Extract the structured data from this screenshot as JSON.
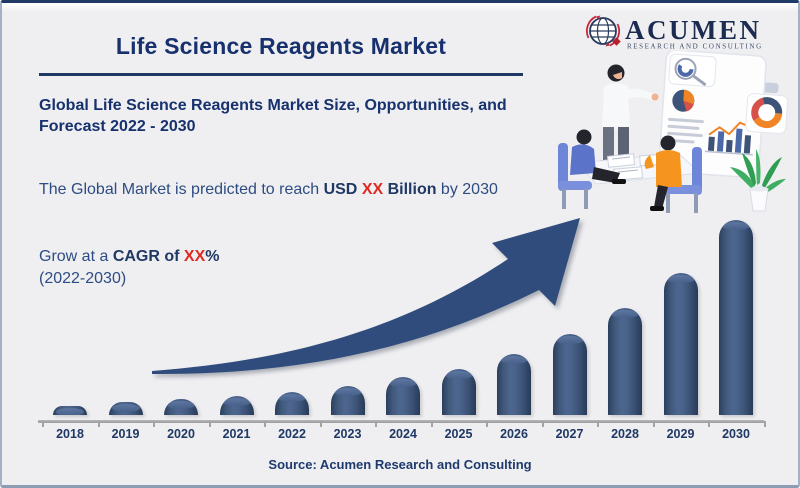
{
  "header": {
    "title": "Life Science Reagents Market"
  },
  "intro": {
    "subtitle": "Global Life Science Reagents Market Size, Opportunities, and Forecast 2022 - 2030",
    "prediction_prefix": "The Global Market is predicted to reach ",
    "prediction_bold_1": "USD ",
    "prediction_highlight": "XX",
    "prediction_bold_2": " Billion",
    "prediction_suffix": " by 2030",
    "cagr_prefix": "Grow at a ",
    "cagr_bold": "CAGR of ",
    "cagr_highlight": "XX",
    "cagr_percent": "%",
    "cagr_line2": "(2022-2030)",
    "highlight_color": "#e02a21",
    "text_color": "#2d4c82",
    "heading_color": "#16316d"
  },
  "logo": {
    "name": "ACUMEN",
    "tagline": "RESEARCH AND CONSULTING",
    "navy": "#1b2c50",
    "red": "#c5283c"
  },
  "chart_data": {
    "type": "bar",
    "title": "",
    "xlabel": "",
    "ylabel": "",
    "categories": [
      "2018",
      "2019",
      "2020",
      "2021",
      "2022",
      "2023",
      "2024",
      "2025",
      "2026",
      "2027",
      "2028",
      "2029",
      "2030"
    ],
    "values": [
      9,
      13,
      16,
      19,
      23,
      29,
      38,
      46,
      61,
      81,
      107,
      142,
      195
    ],
    "values_unit": "relative bar height (px); actual market values shown only as USD XX Billion placeholder",
    "grid": false,
    "legend": false,
    "bar_color": "#3d5478",
    "axis_color": "#a3a3a3",
    "tick_label_color": "#1f3864"
  },
  "arrow": {
    "meaning": "upward growth trend arrow",
    "color": "#2f4c7c"
  },
  "footer": {
    "source": "Source: Acumen Research and Consulting"
  }
}
